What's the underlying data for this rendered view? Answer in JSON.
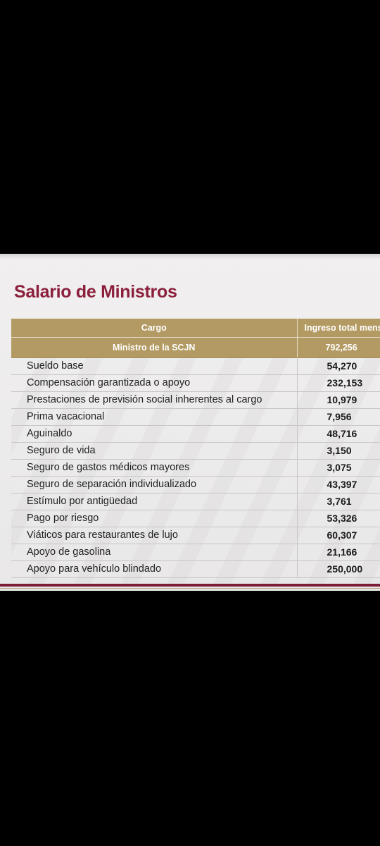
{
  "slide": {
    "title": "Salario de Ministros",
    "colors": {
      "accent": "#8b1f3c",
      "header_gold": "#b39a62",
      "rule": "#7a1f35"
    },
    "table": {
      "header": {
        "col1": "Cargo",
        "col2": "Ingreso total mens"
      },
      "subheader": {
        "col1": "Ministro de la SCJN",
        "col2": "792,256"
      },
      "rows": [
        {
          "label": "Sueldo base",
          "value": "54,270"
        },
        {
          "label": "Compensación garantizada o apoyo",
          "value": "232,153"
        },
        {
          "label": "Prestaciones de previsión social inherentes al cargo",
          "value": "10,979"
        },
        {
          "label": "Prima vacacional",
          "value": "7,956"
        },
        {
          "label": "Aguinaldo",
          "value": "48,716"
        },
        {
          "label": "Seguro de vida",
          "value": "3,150"
        },
        {
          "label": "Seguro de gastos médicos mayores",
          "value": "3,075"
        },
        {
          "label": "Seguro de separación individualizado",
          "value": "43,397"
        },
        {
          "label": "Estímulo por antigüedad",
          "value": "3,761"
        },
        {
          "label": "Pago por riesgo",
          "value": "53,326"
        },
        {
          "label": "Viáticos para restaurantes de lujo",
          "value": "60,307"
        },
        {
          "label": "Apoyo de gasolina",
          "value": "21,166"
        },
        {
          "label": "Apoyo para vehículo blindado",
          "value": "250,000"
        }
      ]
    }
  }
}
